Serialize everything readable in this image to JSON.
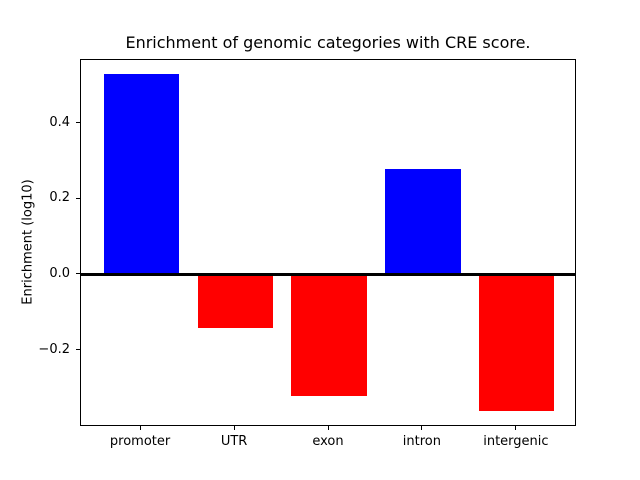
{
  "chart_data": {
    "type": "bar",
    "title": "Enrichment of genomic categories with CRE score.",
    "xlabel": "",
    "ylabel": "Enrichment (log10)",
    "categories": [
      "promoter",
      "UTR",
      "exon",
      "intron",
      "intergenic"
    ],
    "values": [
      0.53,
      -0.14,
      -0.32,
      0.28,
      -0.36
    ],
    "series": [
      {
        "name": "Enrichment (log10)",
        "values": [
          0.53,
          -0.14,
          -0.32,
          0.28,
          -0.36
        ]
      }
    ],
    "colors": {
      "positive": "#0000ff",
      "negative": "#ff0000",
      "axis": "#000000",
      "background": "#ffffff"
    },
    "ylim": [
      -0.402,
      0.568
    ],
    "yticks": [
      0.4,
      0.2,
      0.0,
      -0.2
    ],
    "ytick_labels": [
      "0.4",
      "0.2",
      "0.0",
      "−0.2"
    ],
    "zero_line": true,
    "grid": false,
    "legend": null
  }
}
